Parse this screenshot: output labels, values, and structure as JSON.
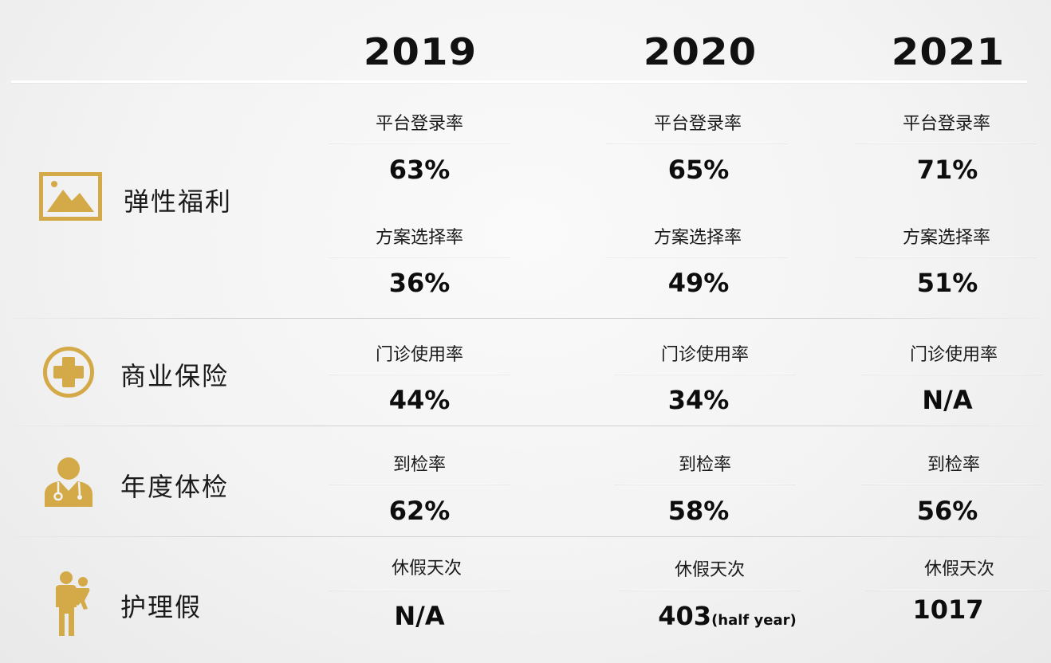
{
  "years": [
    "2019",
    "2020",
    "2021"
  ],
  "colors": {
    "accent_gold": "#d4aa48",
    "text": "#111111"
  },
  "categories": [
    {
      "label": "弹性福利",
      "icon": "image-icon",
      "metrics": [
        {
          "label": "平台登录率",
          "values": [
            "63%",
            "65%",
            "71%"
          ]
        },
        {
          "label": "方案选择率",
          "values": [
            "36%",
            "49%",
            "51%"
          ]
        }
      ]
    },
    {
      "label": "商业保险",
      "icon": "medical-cross-icon",
      "metrics": [
        {
          "label": "门诊使用率",
          "values": [
            "44%",
            "34%",
            "N/A"
          ]
        }
      ]
    },
    {
      "label": "年度体检",
      "icon": "doctor-icon",
      "metrics": [
        {
          "label": "到检率",
          "values": [
            "62%",
            "58%",
            "56%"
          ]
        }
      ]
    },
    {
      "label": "护理假",
      "icon": "parent-child-icon",
      "metrics": [
        {
          "label": "休假天次",
          "values": [
            "N/A",
            "403",
            "1017"
          ],
          "value_suffixes": [
            "",
            "(half year)",
            ""
          ]
        }
      ]
    }
  ]
}
